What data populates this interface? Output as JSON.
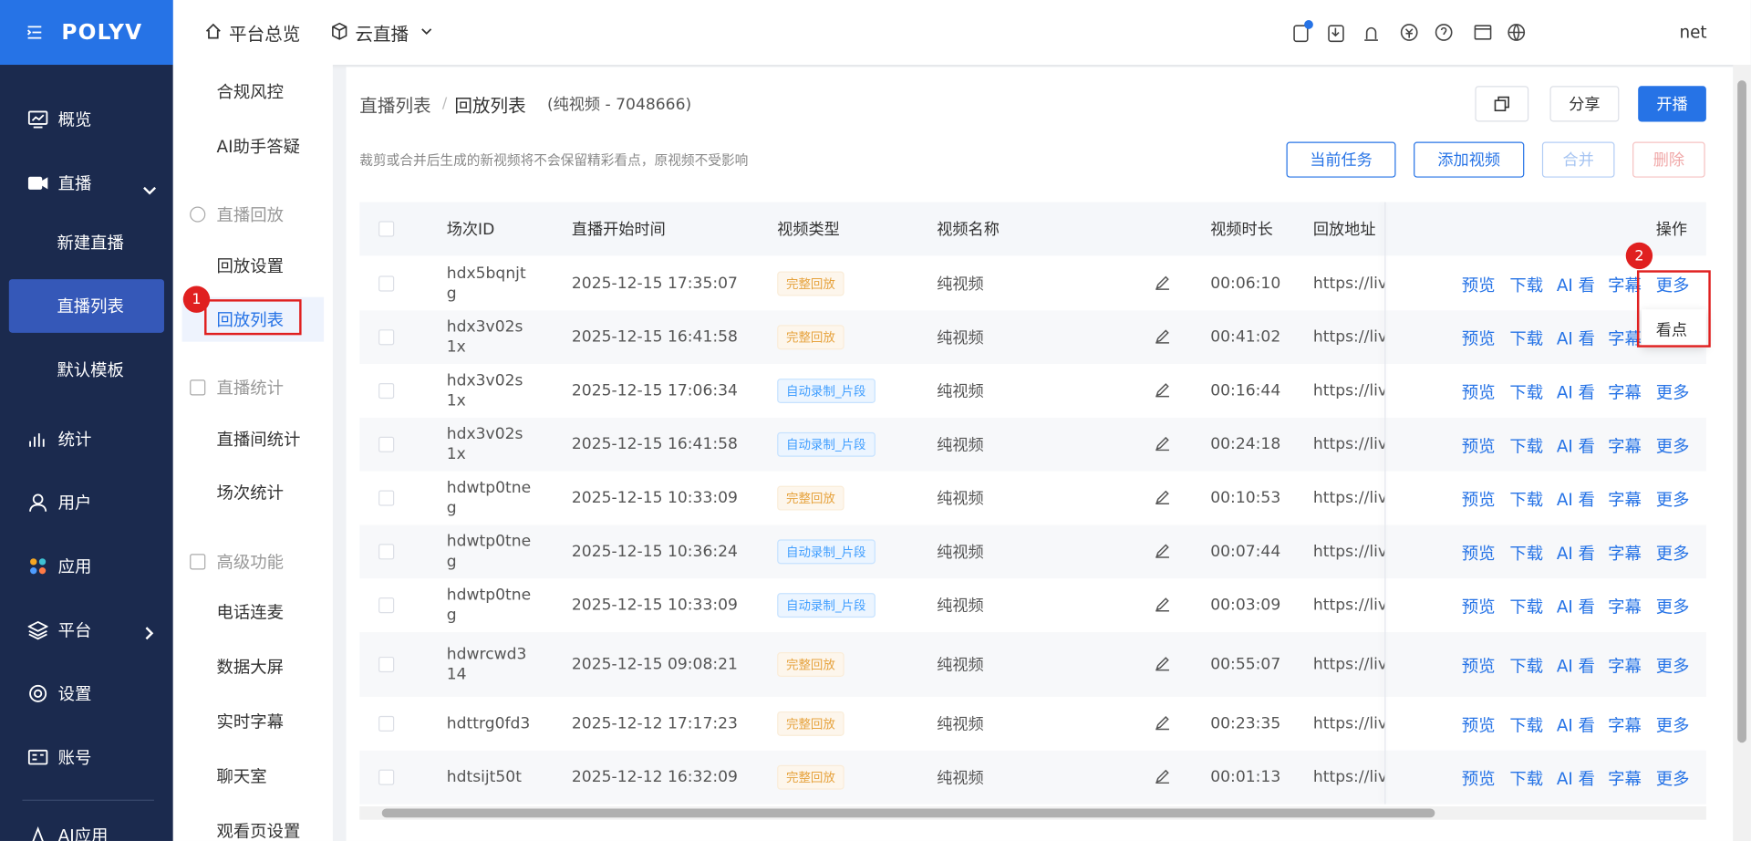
{
  "header": {
    "logo": "POLYV",
    "nav": [
      "平台总览",
      "云直播"
    ],
    "user": "net"
  },
  "sidebar": {
    "items": [
      "概览",
      "直播",
      "新建直播",
      "直播列表",
      "默认模板",
      "统计",
      "用户",
      "应用",
      "平台",
      "设置",
      "账号",
      "AI应用"
    ]
  },
  "subnav": {
    "top": [
      "合规风控",
      "AI助手答疑"
    ],
    "groups": [
      {
        "title": "直播回放",
        "items": [
          "回放设置",
          "回放列表"
        ]
      },
      {
        "title": "直播统计",
        "items": [
          "直播间统计",
          "场次统计"
        ]
      },
      {
        "title": "高级功能",
        "items": [
          "电话连麦",
          "数据大屏",
          "实时字幕",
          "聊天室",
          "观看页设置"
        ]
      }
    ]
  },
  "breadcrumb": {
    "items": [
      "直播列表",
      "回放列表"
    ],
    "separator": "/",
    "note": "(纯视频 - 7048666)"
  },
  "toolbar": {
    "share": "分享",
    "start": "开播",
    "notice": "裁剪或合并后生成的新视频将不会保留精彩看点，原视频不受影响",
    "buttons": [
      "当前任务",
      "添加视频",
      "合并",
      "删除"
    ]
  },
  "table": {
    "columns": [
      "场次ID",
      "直播开始时间",
      "视频类型",
      "视频名称",
      "视频时长",
      "回放地址",
      "操作"
    ],
    "rows": [
      [
        "hdx5bqnjtg",
        "2025-12-15 17:35:07",
        "完整回放",
        "纯视频",
        "00:06:10",
        "https://live"
      ],
      [
        "hdx3v02s1x",
        "2025-12-15 16:41:58",
        "完整回放",
        "纯视频",
        "00:41:02",
        "https://live"
      ],
      [
        "hdx3v02s1x",
        "2025-12-15 17:06:34",
        "自动录制_片段",
        "纯视频",
        "00:16:44",
        "https://live"
      ],
      [
        "hdx3v02s1x",
        "2025-12-15 16:41:58",
        "自动录制_片段",
        "纯视频",
        "00:24:18",
        "https://live"
      ],
      [
        "hdwtp0tneg",
        "2025-12-15 10:33:09",
        "完整回放",
        "纯视频",
        "00:10:53",
        "https://live"
      ],
      [
        "hdwtp0tneg",
        "2025-12-15 10:36:24",
        "自动录制_片段",
        "纯视频",
        "00:07:44",
        "https://live"
      ],
      [
        "hdwtp0tneg",
        "2025-12-15 10:33:09",
        "自动录制_片段",
        "纯视频",
        "00:03:09",
        "https://live"
      ],
      [
        "hdwrcwd314",
        "2025-12-15 09:08:21",
        "完整回放",
        "纯视频",
        "00:55:07",
        "https://live"
      ],
      [
        "hdttrg0fd3",
        "2025-12-12 17:17:23",
        "完整回放",
        "纯视频",
        "00:23:35",
        "https://live"
      ],
      [
        "hdtsijt50t",
        "2025-12-12 16:32:09",
        "完整回放",
        "纯视频",
        "00:01:13",
        "https://live"
      ]
    ],
    "actions": [
      "预览",
      "下载",
      "AI 看",
      "字幕",
      "更多"
    ]
  },
  "dropdown": {
    "items": [
      "看点"
    ]
  },
  "annotations": [
    "1",
    "2"
  ]
}
